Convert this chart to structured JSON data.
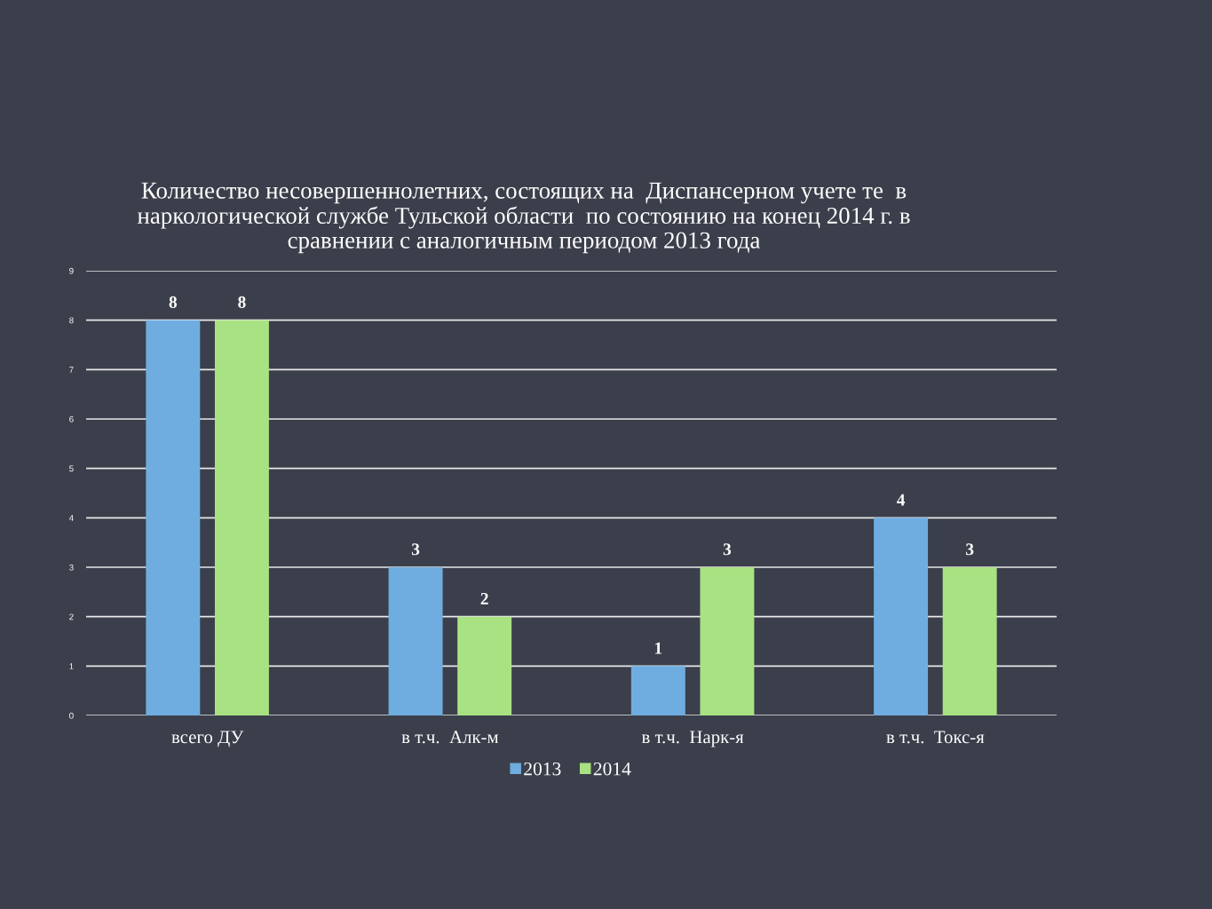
{
  "chart_data": {
    "type": "bar",
    "title": "Количество несовершеннолетних, состоящих на  Диспансерном учете те  в наркологической службе Тульской области  по состоянию на конец 2014 г. в сравнении с аналогичным периодом 2013 года",
    "categories": [
      "всего ДУ",
      "в т.ч.  Алк-м",
      "в т.ч.  Нарк-я",
      "в т.ч.  Токс-я"
    ],
    "series": [
      {
        "name": "2013",
        "color": "#6fade0",
        "values": [
          8,
          3,
          1,
          4
        ]
      },
      {
        "name": "2014",
        "color": "#a9e282",
        "values": [
          8,
          2,
          3,
          3
        ]
      }
    ],
    "ylim": [
      0,
      9
    ],
    "yticks": [
      0,
      1,
      2,
      3,
      4,
      5,
      6,
      7,
      8,
      9
    ],
    "grid": "y",
    "legend": "bottom",
    "data_labels": true
  }
}
